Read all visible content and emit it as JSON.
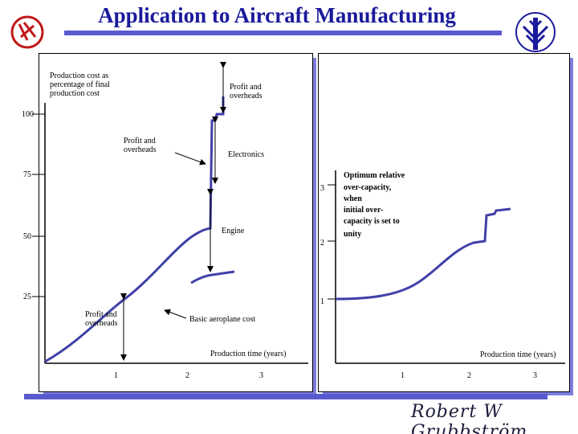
{
  "title": "Application to Aircraft Manufacturing",
  "signature": "Robert W Grubbström",
  "colors": {
    "title": "#1a1a9c",
    "accent": "#5a5ad0",
    "curve": "#4040a8",
    "background": "#0000c8"
  },
  "left_chart": {
    "y_title_lines": [
      "Production cost as",
      "percentage of final",
      "production cost"
    ],
    "y_ticks": [
      "100",
      "75",
      "50",
      "25"
    ],
    "x_ticks": [
      "1",
      "2",
      "3"
    ],
    "x_label": "Production time (years)",
    "labels": {
      "profit_top": [
        "Profit and",
        "overheads"
      ],
      "profit_mid": [
        "Profit and",
        "overheads"
      ],
      "profit_bottom": [
        "Profit and",
        "overheads"
      ],
      "electronics": "Electronics",
      "engine": "Engine",
      "basic": "Basic aeroplane cost"
    }
  },
  "right_chart": {
    "y_ticks": [
      "3",
      "2",
      "1"
    ],
    "x_ticks": [
      "1",
      "2",
      "3"
    ],
    "x_label": "Production time (years)",
    "annotation_lines": [
      "Optimum relative",
      "over-capacity,",
      "when",
      "initial over-",
      "capacity is set to",
      "unity"
    ]
  }
}
